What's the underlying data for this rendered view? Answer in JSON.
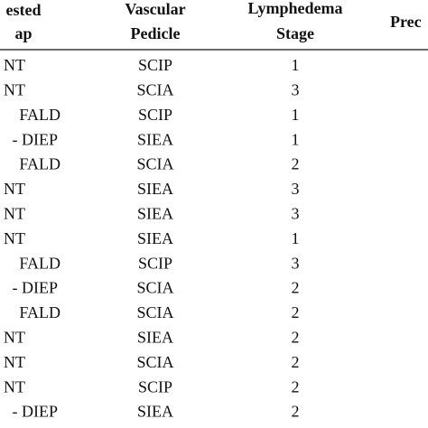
{
  "table": {
    "header": [
      [
        "ested",
        "ap"
      ],
      [
        "Vascular",
        "Pedicle"
      ],
      [
        "Lymphedema",
        "Stage"
      ],
      [
        "Prec"
      ]
    ],
    "rows": [
      [
        "NT",
        "SCIP",
        "1"
      ],
      [
        "NT",
        "SCIA",
        "3"
      ],
      [
        "FALD",
        "SCIP",
        "1"
      ],
      [
        "- DIEP",
        "SIEA",
        "1"
      ],
      [
        "FALD",
        "SCIA",
        "2"
      ],
      [
        "NT",
        "SIEA",
        "3"
      ],
      [
        "NT",
        "SIEA",
        "3"
      ],
      [
        "NT",
        "SIEA",
        "1"
      ],
      [
        "FALD",
        "SCIP",
        "3"
      ],
      [
        "- DIEP",
        "SCIA",
        "2"
      ],
      [
        "FALD",
        "SCIA",
        "2"
      ],
      [
        "NT",
        "SIEA",
        "2"
      ],
      [
        "NT",
        "SCIA",
        "2"
      ],
      [
        "NT",
        "SCIP",
        "2"
      ],
      [
        "- DIEP",
        "SIEA",
        "2"
      ]
    ]
  }
}
